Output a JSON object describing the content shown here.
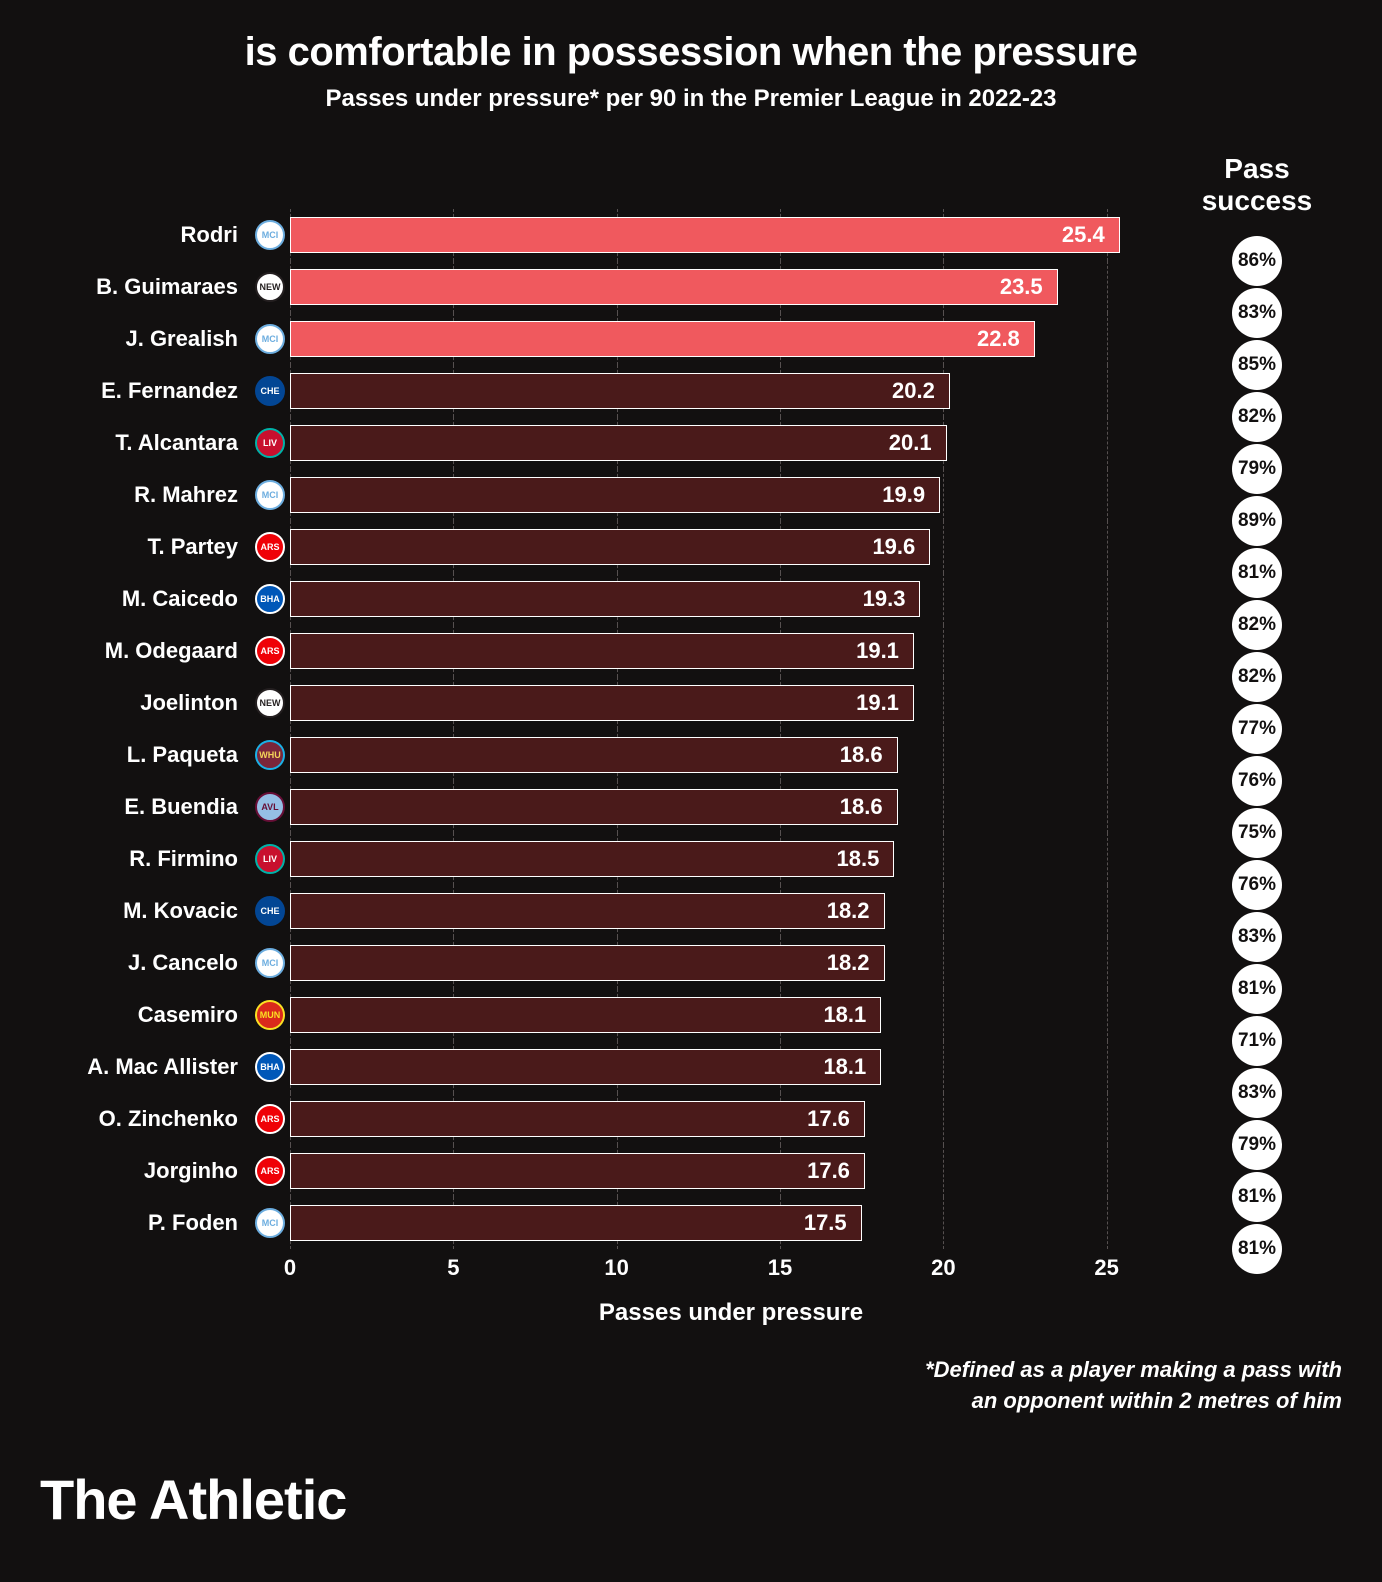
{
  "title": "is comfortable in possession when the pressure",
  "subtitle": "Passes under pressure* per 90 in the Premier League in 2022-23",
  "success_header": "Pass success",
  "axis_label": "Passes under pressure",
  "footnote_line1": "*Defined as a player making a pass with",
  "footnote_line2": "an opponent within 2 metres of him",
  "brand": "The Athletic",
  "xmax": 27,
  "xticks": [
    0,
    5,
    10,
    15,
    20,
    25
  ],
  "bar_border": "#ffffff",
  "highlight_color": "#f0595e",
  "normal_color": "#4a1a1a",
  "background": "#121010",
  "grid_color": "#565050",
  "circle_bg": "#ffffff",
  "circle_fg": "#121010",
  "teams": {
    "mci": {
      "bg": "#ffffff",
      "fg": "#6caddf",
      "border": "#6caddf",
      "abbr": "MCI"
    },
    "new": {
      "bg": "#ffffff",
      "fg": "#241f20",
      "border": "#241f20",
      "abbr": "NEW"
    },
    "che": {
      "bg": "#034694",
      "fg": "#ffffff",
      "border": "#034694",
      "abbr": "CHE"
    },
    "liv": {
      "bg": "#c8102e",
      "fg": "#ffffff",
      "border": "#00b2a9",
      "abbr": "LIV"
    },
    "ars": {
      "bg": "#ef0107",
      "fg": "#ffffff",
      "border": "#ffffff",
      "abbr": "ARS"
    },
    "bha": {
      "bg": "#0057b8",
      "fg": "#ffffff",
      "border": "#ffffff",
      "abbr": "BHA"
    },
    "whu": {
      "bg": "#7a263a",
      "fg": "#f3d459",
      "border": "#1bb1e7",
      "abbr": "WHU"
    },
    "avl": {
      "bg": "#95bfe5",
      "fg": "#670e36",
      "border": "#670e36",
      "abbr": "AVL"
    },
    "mun": {
      "bg": "#da291c",
      "fg": "#fbe122",
      "border": "#fbe122",
      "abbr": "MUN"
    }
  },
  "players": [
    {
      "name": "Rodri",
      "team": "mci",
      "value": 25.4,
      "success": "86%",
      "highlight": true
    },
    {
      "name": "B. Guimaraes",
      "team": "new",
      "value": 23.5,
      "success": "83%",
      "highlight": true
    },
    {
      "name": "J. Grealish",
      "team": "mci",
      "value": 22.8,
      "success": "85%",
      "highlight": true
    },
    {
      "name": "E. Fernandez",
      "team": "che",
      "value": 20.2,
      "success": "82%",
      "highlight": false
    },
    {
      "name": "T. Alcantara",
      "team": "liv",
      "value": 20.1,
      "success": "79%",
      "highlight": false
    },
    {
      "name": "R. Mahrez",
      "team": "mci",
      "value": 19.9,
      "success": "89%",
      "highlight": false
    },
    {
      "name": "T. Partey",
      "team": "ars",
      "value": 19.6,
      "success": "81%",
      "highlight": false
    },
    {
      "name": "M. Caicedo",
      "team": "bha",
      "value": 19.3,
      "success": "82%",
      "highlight": false
    },
    {
      "name": "M. Odegaard",
      "team": "ars",
      "value": 19.1,
      "success": "82%",
      "highlight": false
    },
    {
      "name": "Joelinton",
      "team": "new",
      "value": 19.1,
      "success": "77%",
      "highlight": false
    },
    {
      "name": "L. Paqueta",
      "team": "whu",
      "value": 18.6,
      "success": "76%",
      "highlight": false
    },
    {
      "name": "E. Buendia",
      "team": "avl",
      "value": 18.6,
      "success": "75%",
      "highlight": false
    },
    {
      "name": "R. Firmino",
      "team": "liv",
      "value": 18.5,
      "success": "76%",
      "highlight": false
    },
    {
      "name": "M. Kovacic",
      "team": "che",
      "value": 18.2,
      "success": "83%",
      "highlight": false
    },
    {
      "name": "J. Cancelo",
      "team": "mci",
      "value": 18.2,
      "success": "81%",
      "highlight": false
    },
    {
      "name": "Casemiro",
      "team": "mun",
      "value": 18.1,
      "success": "71%",
      "highlight": false
    },
    {
      "name": "A. Mac Allister",
      "team": "bha",
      "value": 18.1,
      "success": "83%",
      "highlight": false
    },
    {
      "name": "O. Zinchenko",
      "team": "ars",
      "value": 17.6,
      "success": "79%",
      "highlight": false
    },
    {
      "name": "Jorginho",
      "team": "ars",
      "value": 17.6,
      "success": "81%",
      "highlight": false
    },
    {
      "name": "P. Foden",
      "team": "mci",
      "value": 17.5,
      "success": "81%",
      "highlight": false
    }
  ]
}
